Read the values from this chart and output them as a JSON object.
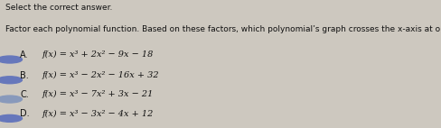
{
  "title_line1": "Select the correct answer.",
  "title_line2": "Factor each polynomial function. Based on these factors, which polynomial’s graph crosses the x-axis at only one point?",
  "options": [
    {
      "label": "A.",
      "text": "f(x) = x³ + 2x² − 9x − 18",
      "selected": true
    },
    {
      "label": "B.",
      "text": "f(x) = x³ − 2x² − 16x + 32",
      "selected": true
    },
    {
      "label": "C.",
      "text": "f(x) = x³ − 7x² + 3x − 21",
      "selected": false
    },
    {
      "label": "D.",
      "text": "f(x) = x³ − 3x² − 4x + 12",
      "selected": true
    }
  ],
  "dot_color_selected": "#6677bb",
  "dot_color_unselected": "#8899bb",
  "bg_color": "#cdc8bf",
  "text_color": "#111111",
  "title1_fontsize": 6.5,
  "title2_fontsize": 6.5,
  "option_fontsize": 7.0,
  "label_fontsize": 7.0
}
